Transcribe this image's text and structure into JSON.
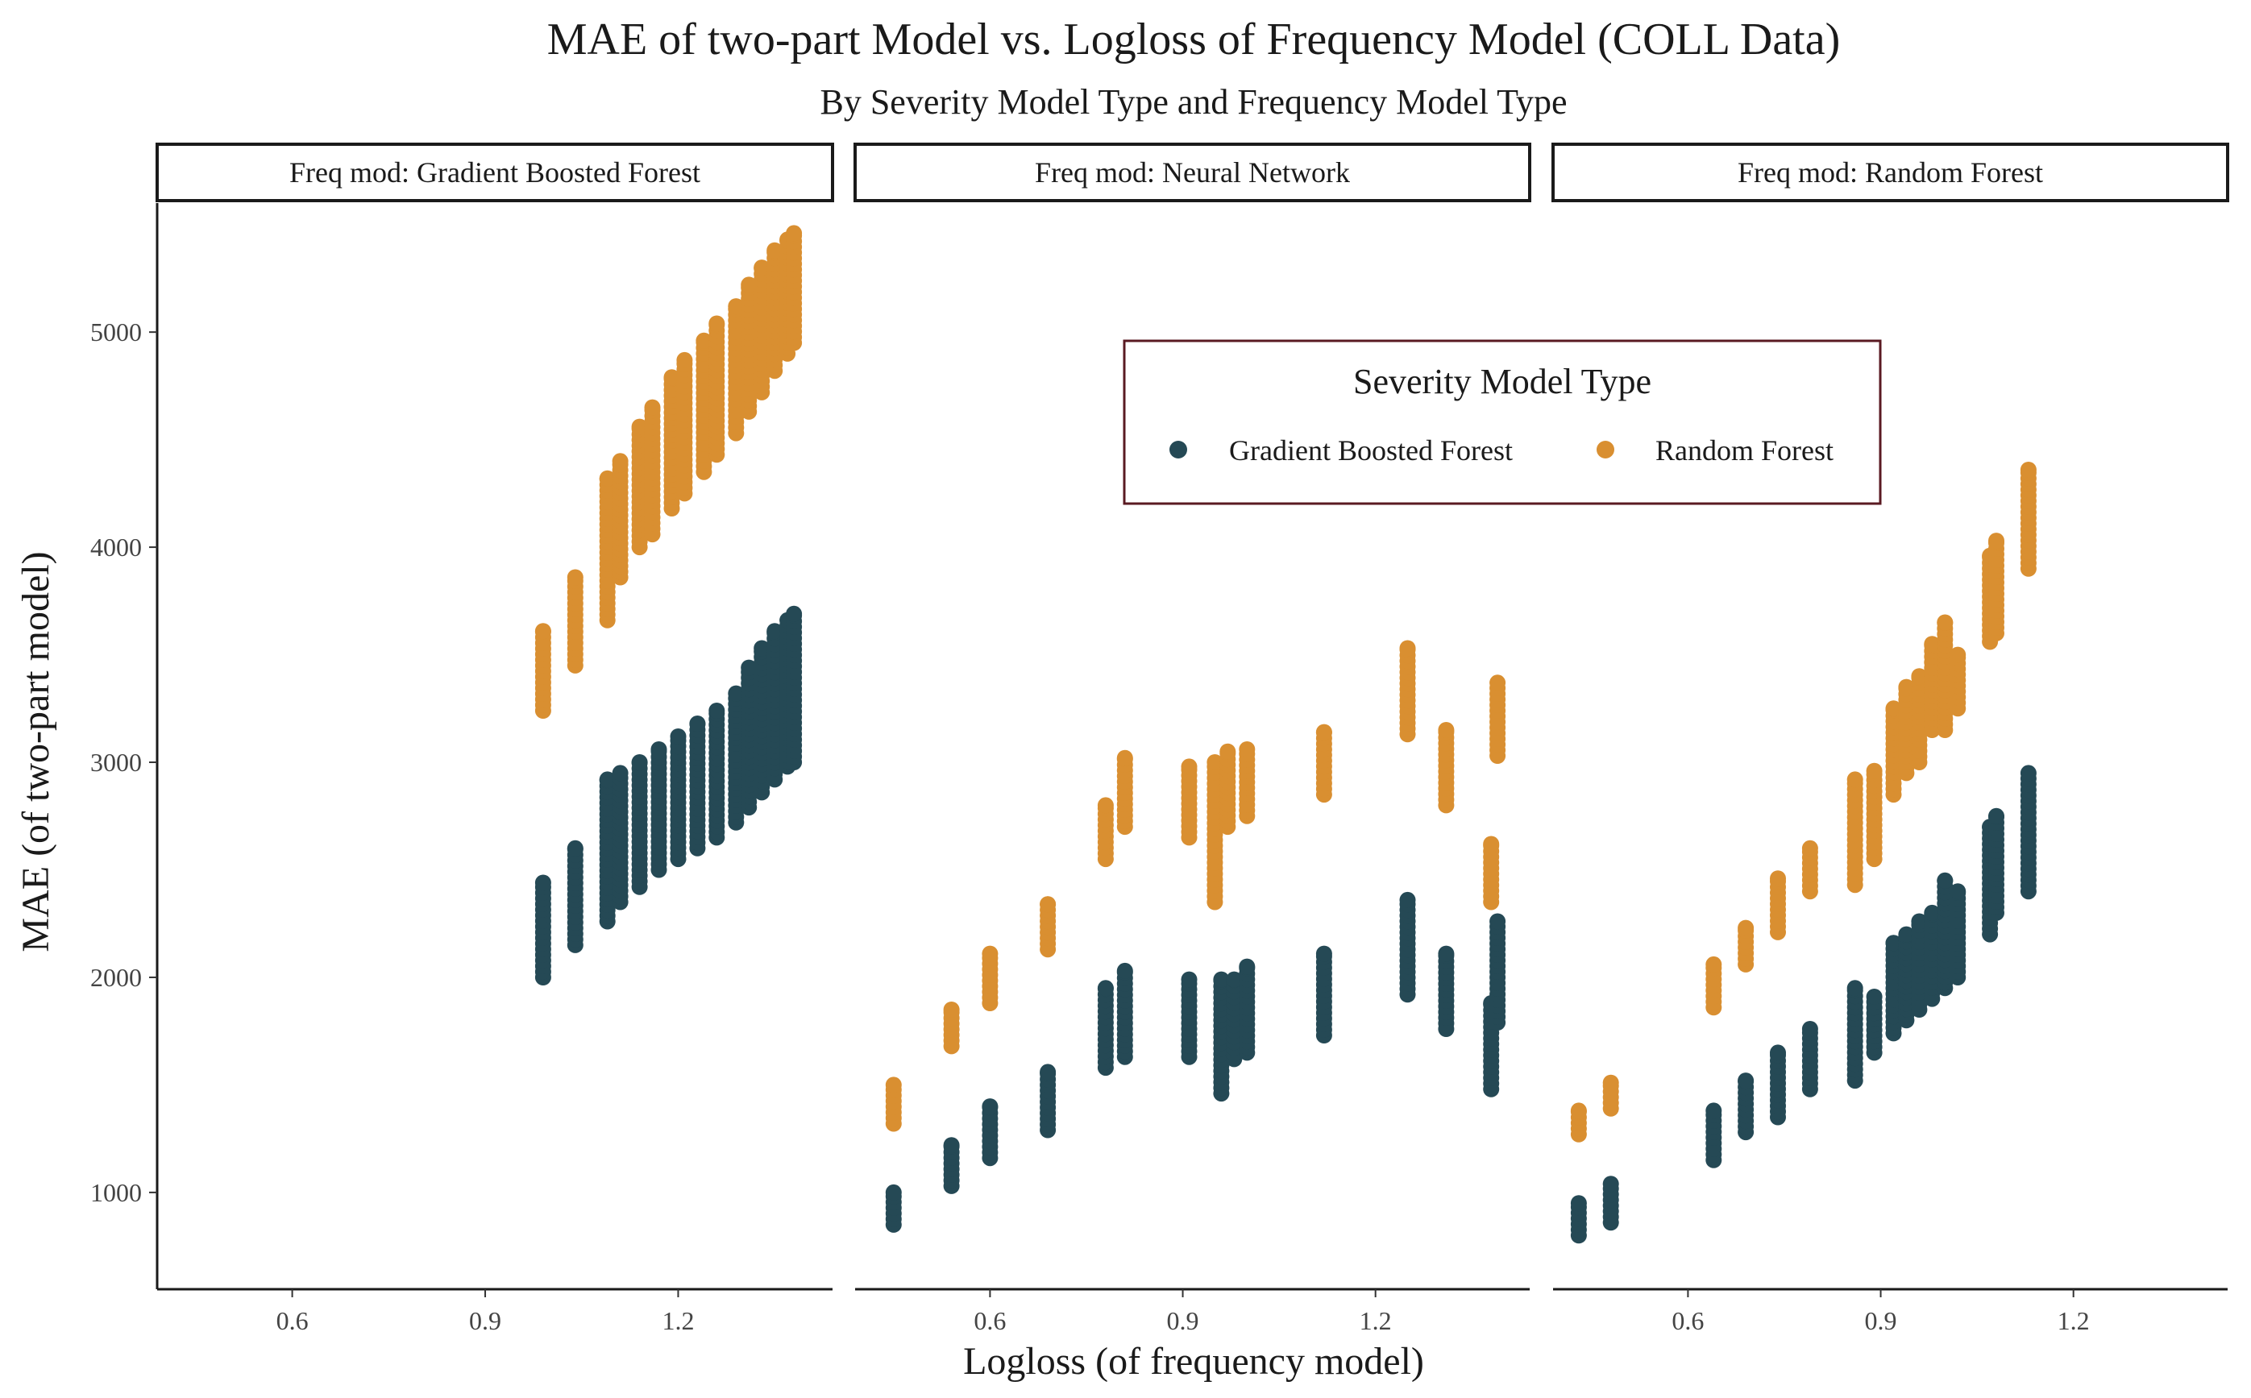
{
  "chart_data": {
    "type": "scatter",
    "title": "MAE of two-part Model vs. Logloss of Frequency Model (COLL Data)",
    "subtitle": "By Severity Model Type and Frequency Model Type",
    "xlabel": "Logloss (of frequency model)",
    "ylabel": "MAE (of two-part model)",
    "xlim": [
      0.39,
      1.44
    ],
    "ylim": [
      550,
      5600
    ],
    "x_ticks": [
      0.6,
      0.9,
      1.2
    ],
    "y_ticks": [
      1000,
      2000,
      3000,
      4000,
      5000
    ],
    "grid": false,
    "legend": {
      "title": "Severity Model Type",
      "placement": "inside-top-center",
      "entries": [
        "Gradient Boosted Forest",
        "Random Forest"
      ]
    },
    "colors": {
      "Gradient Boosted Forest": "#254955",
      "Random Forest": "#d98f31",
      "legend_border": "#5a1a22"
    },
    "panels": [
      {
        "label": "Freq mod: Gradient Boosted Forest",
        "series": [
          {
            "name": "Gradient Boosted Forest",
            "ranges": [
              [
                0.99,
                2000,
                2440
              ],
              [
                1.04,
                2150,
                2600
              ],
              [
                1.09,
                2260,
                2920
              ],
              [
                1.11,
                2350,
                2950
              ],
              [
                1.14,
                2420,
                3000
              ],
              [
                1.17,
                2500,
                3060
              ],
              [
                1.2,
                2550,
                3120
              ],
              [
                1.23,
                2600,
                3180
              ],
              [
                1.26,
                2650,
                3240
              ],
              [
                1.29,
                2720,
                3320
              ],
              [
                1.31,
                2790,
                3440
              ],
              [
                1.33,
                2860,
                3530
              ],
              [
                1.35,
                2920,
                3610
              ],
              [
                1.37,
                2980,
                3660
              ],
              [
                1.38,
                3000,
                3690
              ]
            ]
          },
          {
            "name": "Random Forest",
            "ranges": [
              [
                0.99,
                3240,
                3610
              ],
              [
                1.04,
                3450,
                3860
              ],
              [
                1.09,
                3660,
                4320
              ],
              [
                1.11,
                3860,
                4400
              ],
              [
                1.14,
                4000,
                4560
              ],
              [
                1.16,
                4060,
                4650
              ],
              [
                1.19,
                4180,
                4790
              ],
              [
                1.21,
                4250,
                4870
              ],
              [
                1.24,
                4350,
                4960
              ],
              [
                1.26,
                4430,
                5040
              ],
              [
                1.29,
                4530,
                5120
              ],
              [
                1.31,
                4630,
                5220
              ],
              [
                1.33,
                4720,
                5300
              ],
              [
                1.35,
                4820,
                5380
              ],
              [
                1.37,
                4900,
                5430
              ],
              [
                1.38,
                4950,
                5460
              ]
            ]
          }
        ]
      },
      {
        "label": "Freq mod: Neural Network",
        "series": [
          {
            "name": "Gradient Boosted Forest",
            "ranges": [
              [
                0.45,
                850,
                1000
              ],
              [
                0.54,
                1030,
                1220
              ],
              [
                0.6,
                1160,
                1400
              ],
              [
                0.69,
                1290,
                1560
              ],
              [
                0.78,
                1580,
                1950
              ],
              [
                0.81,
                1630,
                2030
              ],
              [
                0.91,
                1630,
                1990
              ],
              [
                0.96,
                1460,
                1990
              ],
              [
                0.98,
                1620,
                1990
              ],
              [
                1.0,
                1650,
                2050
              ],
              [
                1.12,
                1730,
                2110
              ],
              [
                1.25,
                1920,
                2360
              ],
              [
                1.31,
                1760,
                2110
              ],
              [
                1.38,
                1480,
                1880
              ],
              [
                1.39,
                1790,
                2260
              ]
            ]
          },
          {
            "name": "Random Forest",
            "ranges": [
              [
                0.45,
                1320,
                1500
              ],
              [
                0.54,
                1680,
                1850
              ],
              [
                0.6,
                1880,
                2110
              ],
              [
                0.69,
                2130,
                2340
              ],
              [
                0.78,
                2550,
                2800
              ],
              [
                0.81,
                2700,
                3020
              ],
              [
                0.91,
                2650,
                2980
              ],
              [
                0.95,
                2350,
                3000
              ],
              [
                0.97,
                2700,
                3050
              ],
              [
                1.0,
                2750,
                3060
              ],
              [
                1.12,
                2850,
                3140
              ],
              [
                1.25,
                3130,
                3530
              ],
              [
                1.31,
                2800,
                3150
              ],
              [
                1.38,
                2350,
                2620
              ],
              [
                1.39,
                3030,
                3370
              ]
            ]
          }
        ]
      },
      {
        "label": "Freq mod: Random Forest",
        "series": [
          {
            "name": "Gradient Boosted Forest",
            "ranges": [
              [
                0.43,
                800,
                950
              ],
              [
                0.48,
                860,
                1040
              ],
              [
                0.64,
                1150,
                1380
              ],
              [
                0.69,
                1280,
                1520
              ],
              [
                0.74,
                1350,
                1650
              ],
              [
                0.79,
                1480,
                1760
              ],
              [
                0.86,
                1520,
                1950
              ],
              [
                0.89,
                1650,
                1910
              ],
              [
                0.92,
                1740,
                2160
              ],
              [
                0.94,
                1800,
                2200
              ],
              [
                0.96,
                1850,
                2260
              ],
              [
                0.98,
                1900,
                2300
              ],
              [
                1.0,
                1950,
                2450
              ],
              [
                1.02,
                2000,
                2400
              ],
              [
                1.07,
                2200,
                2700
              ],
              [
                1.08,
                2300,
                2750
              ],
              [
                1.13,
                2400,
                2950
              ]
            ]
          },
          {
            "name": "Random Forest",
            "ranges": [
              [
                0.43,
                1270,
                1380
              ],
              [
                0.48,
                1390,
                1510
              ],
              [
                0.64,
                1860,
                2060
              ],
              [
                0.69,
                2060,
                2230
              ],
              [
                0.74,
                2210,
                2460
              ],
              [
                0.79,
                2400,
                2600
              ],
              [
                0.86,
                2430,
                2920
              ],
              [
                0.89,
                2550,
                2960
              ],
              [
                0.92,
                2850,
                3250
              ],
              [
                0.94,
                2950,
                3350
              ],
              [
                0.96,
                3000,
                3400
              ],
              [
                0.98,
                3150,
                3550
              ],
              [
                1.0,
                3150,
                3650
              ],
              [
                1.02,
                3250,
                3500
              ],
              [
                1.07,
                3560,
                3960
              ],
              [
                1.08,
                3600,
                4030
              ],
              [
                1.13,
                3900,
                4360
              ]
            ]
          }
        ]
      }
    ]
  }
}
